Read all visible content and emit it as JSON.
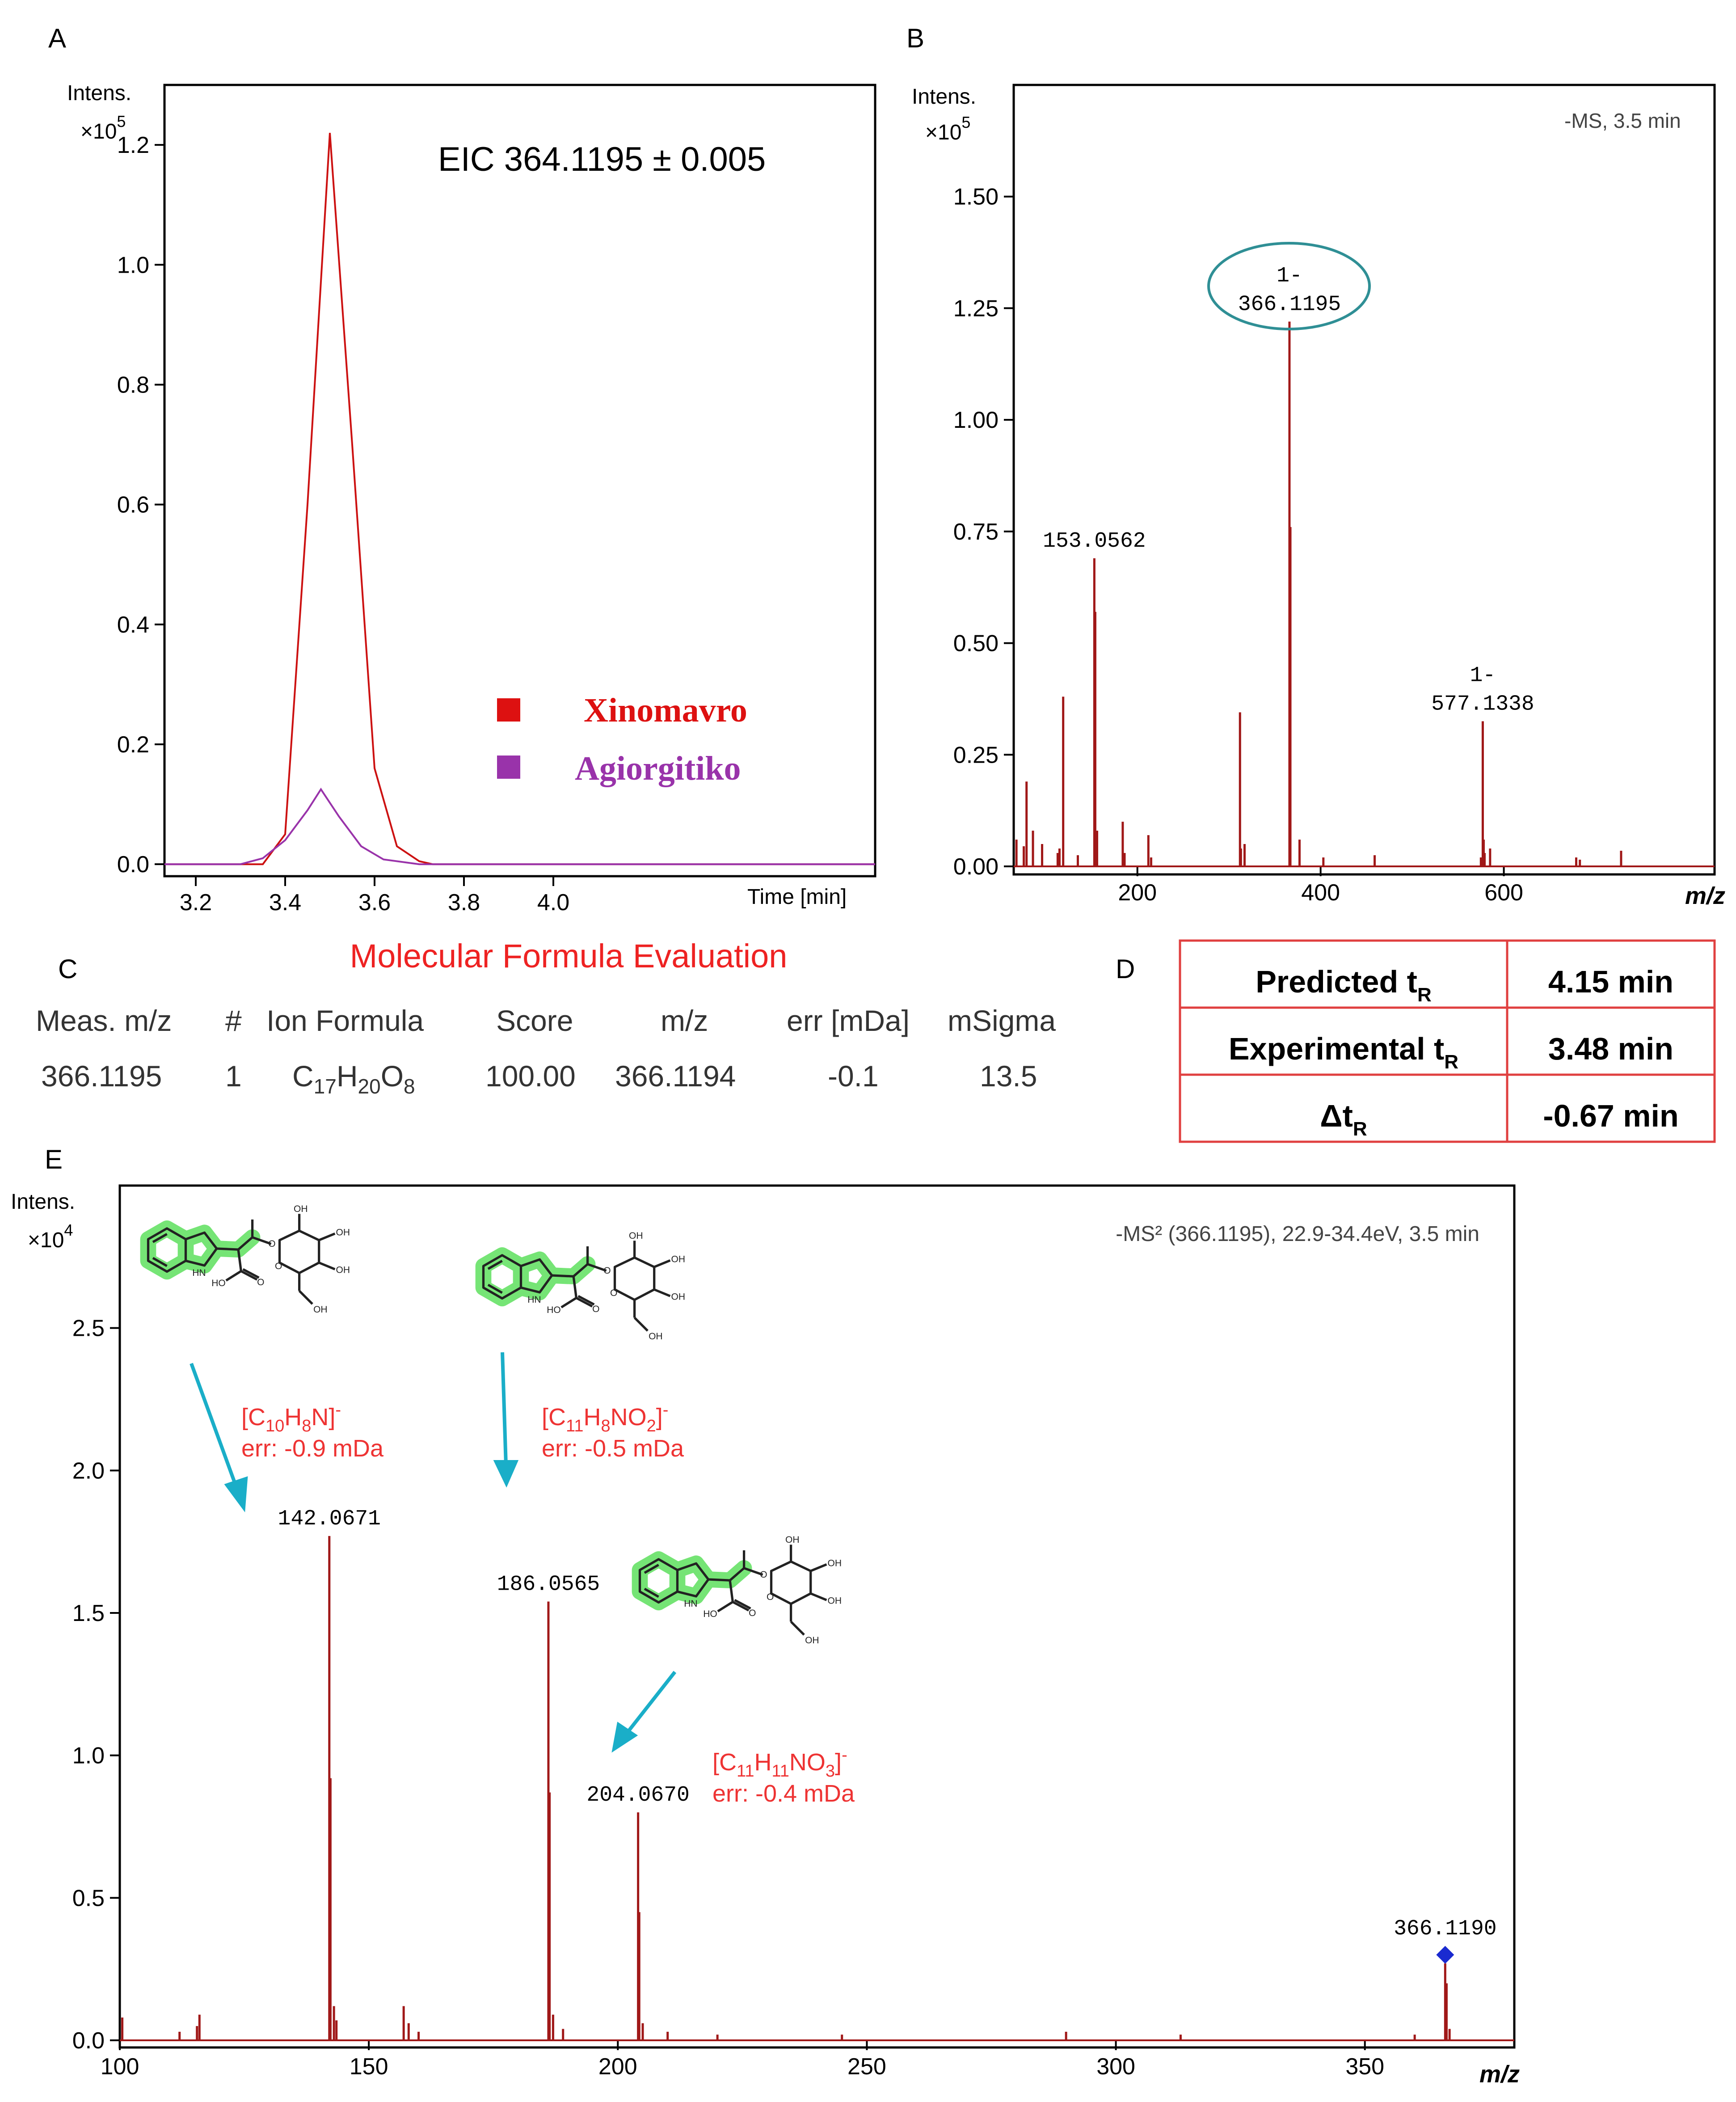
{
  "panels": {
    "a": "A",
    "b": "B",
    "c": "C",
    "d": "D",
    "e": "E"
  },
  "chart_data": [
    {
      "type": "line",
      "panel": "A",
      "annotation": "EIC 364.1195 ± 0.005",
      "ylabel": "Intens.",
      "yscale_label": "×10",
      "yscale_exp": "5",
      "xlabel": "Time [min]",
      "xlim": [
        3.13,
        4.72
      ],
      "ylim": [
        -0.02,
        1.3
      ],
      "xticks": [
        3.2,
        3.4,
        3.6,
        3.8,
        4.0
      ],
      "yticks": [
        0.0,
        0.2,
        0.4,
        0.6,
        0.8,
        1.0,
        1.2
      ],
      "xtick_labels": [
        "3.2",
        "3.4",
        "3.6",
        "3.8",
        "4.0"
      ],
      "ytick_labels": [
        "0.0",
        "0.2",
        "0.4",
        "0.6",
        "0.8",
        "1.0",
        "1.2"
      ],
      "legend_position": "lower-right",
      "series": [
        {
          "name": "Xinomavro",
          "color": "#cc1111",
          "x": [
            3.13,
            3.35,
            3.38,
            3.4,
            3.45,
            3.5,
            3.55,
            3.6,
            3.65,
            3.7,
            3.73,
            4.72
          ],
          "y": [
            0.0,
            0.0,
            0.03,
            0.05,
            0.6,
            1.22,
            0.7,
            0.16,
            0.03,
            0.005,
            0.0,
            0.0
          ]
        },
        {
          "name": "Agiorgitiko",
          "color": "#9933aa",
          "x": [
            3.13,
            3.3,
            3.35,
            3.4,
            3.45,
            3.48,
            3.52,
            3.57,
            3.62,
            3.7,
            4.72
          ],
          "y": [
            0.0,
            0.0,
            0.01,
            0.04,
            0.09,
            0.125,
            0.08,
            0.03,
            0.008,
            0.0,
            0.0
          ]
        }
      ]
    },
    {
      "type": "bar",
      "panel": "B",
      "annotation": "-MS, 3.5 min",
      "ylabel": "Intens.",
      "yscale_label": "×10",
      "yscale_exp": "5",
      "xlabel": "m/z",
      "xlim": [
        65,
        830
      ],
      "ylim": [
        0,
        1.75
      ],
      "xticks": [
        200,
        400,
        600
      ],
      "yticks": [
        0.0,
        0.25,
        0.5,
        0.75,
        1.0,
        1.25,
        1.5
      ],
      "xtick_labels": [
        "200",
        "400",
        "600"
      ],
      "ytick_labels": [
        "0.00",
        "0.25",
        "0.50",
        "0.75",
        "1.00",
        "1.25",
        "1.50"
      ],
      "x": [
        68,
        76,
        79,
        86,
        96,
        113,
        115,
        119,
        135,
        153,
        154,
        156,
        184,
        186,
        212,
        215,
        312,
        313,
        317,
        366,
        367,
        377,
        403,
        459,
        575,
        577,
        578,
        579,
        585,
        679,
        683,
        728
      ],
      "values": [
        0.06,
        0.045,
        0.19,
        0.08,
        0.05,
        0.03,
        0.04,
        0.38,
        0.025,
        0.69,
        0.57,
        0.08,
        0.1,
        0.03,
        0.07,
        0.02,
        0.345,
        0.04,
        0.05,
        1.22,
        0.76,
        0.06,
        0.02,
        0.025,
        0.02,
        0.325,
        0.06,
        0.03,
        0.04,
        0.02,
        0.015,
        0.035
      ],
      "peak_labels": [
        {
          "x": 153,
          "y": 0.69,
          "text": "153.0562"
        },
        {
          "x": 366,
          "y": 1.22,
          "text1": "1-",
          "text2": "366.1195",
          "circled": true
        },
        {
          "x": 577,
          "y": 0.325,
          "text1": "1-",
          "text2": "577.1338"
        }
      ]
    },
    {
      "type": "bar",
      "panel": "E",
      "annotation": "-MS² (366.1195), 22.9-34.4eV, 3.5 min",
      "ylabel": "Intens.",
      "yscale_label": "×10",
      "yscale_exp": "4",
      "xlabel": "m/z",
      "xlim": [
        100,
        380
      ],
      "ylim": [
        0,
        3.0
      ],
      "xticks": [
        100,
        150,
        200,
        250,
        300,
        350
      ],
      "yticks": [
        0.0,
        0.5,
        1.0,
        1.5,
        2.0,
        2.5
      ],
      "xtick_labels": [
        "100",
        "150",
        "200",
        "250",
        "300",
        "350"
      ],
      "ytick_labels": [
        "0.0",
        "0.5",
        "1.0",
        "1.5",
        "2.0",
        "2.5"
      ],
      "x": [
        100.5,
        112,
        115.5,
        116,
        142.07,
        142.3,
        143,
        143.5,
        157,
        158,
        160,
        186.06,
        186.3,
        187,
        189,
        204.07,
        204.3,
        205,
        210,
        220,
        245,
        290,
        313,
        360,
        366.12,
        366.4,
        367
      ],
      "values": [
        0.08,
        0.03,
        0.05,
        0.09,
        1.77,
        0.92,
        0.12,
        0.07,
        0.12,
        0.06,
        0.03,
        1.54,
        0.87,
        0.09,
        0.04,
        0.8,
        0.45,
        0.06,
        0.03,
        0.02,
        0.02,
        0.03,
        0.02,
        0.02,
        0.27,
        0.2,
        0.04
      ],
      "peak_labels": [
        {
          "x": 142.07,
          "y": 1.77,
          "text": "142.0671"
        },
        {
          "x": 186.06,
          "y": 1.54,
          "text": "186.0565"
        },
        {
          "x": 204.07,
          "y": 0.8,
          "text": "204.0670"
        },
        {
          "x": 366.12,
          "y": 0.3,
          "text": "366.1190",
          "marker": "diamond"
        }
      ],
      "fragments": [
        {
          "f1": "[C",
          "s1": "10",
          "f2": "H",
          "s2": "8",
          "f3": "N]",
          "s3": "",
          "f4": "",
          "charge": "-",
          "err": "err: -0.9 mDa"
        },
        {
          "f1": "[C",
          "s1": "11",
          "f2": "H",
          "s2": "8",
          "f3": "NO",
          "s3": "2",
          "f4": "]",
          "charge": "-",
          "err": "err: -0.5 mDa"
        },
        {
          "f1": "[C",
          "s1": "11",
          "f2": "H",
          "s2": "11",
          "f3": "NO",
          "s3": "3",
          "f4": "]",
          "charge": "-",
          "err": "err: -0.4 mDa"
        }
      ]
    }
  ],
  "formula_eval": {
    "title": "Molecular Formula Evaluation",
    "headers": [
      "Meas. m/z",
      "#",
      "Ion Formula",
      "Score",
      "m/z",
      "err [mDa]",
      "mSigma"
    ],
    "row": {
      "meas_mz": "366.1195",
      "num": "1",
      "formula": {
        "c": "C",
        "cn": "17",
        "h": "H",
        "hn": "20",
        "o": "O",
        "on": "8"
      },
      "score": "100.00",
      "mz": "366.1194",
      "err": "-0.1",
      "msigma": "13.5"
    }
  },
  "rt_table": {
    "rows": [
      {
        "label": "Predicted t",
        "sub": "R",
        "value": "4.15 min"
      },
      {
        "label": "Experimental t",
        "sub": "R",
        "value": "3.48 min"
      },
      {
        "label": "Δt",
        "sub": "R",
        "value": "-0.67 min"
      }
    ]
  },
  "colors": {
    "spectrum": "#a01818",
    "red": "#ee3333",
    "teal": "#1aaec8",
    "circle": "#2f8f95",
    "highlight": "#55e055",
    "diamond": "#1a2ad0",
    "table_border": "#e04040"
  }
}
